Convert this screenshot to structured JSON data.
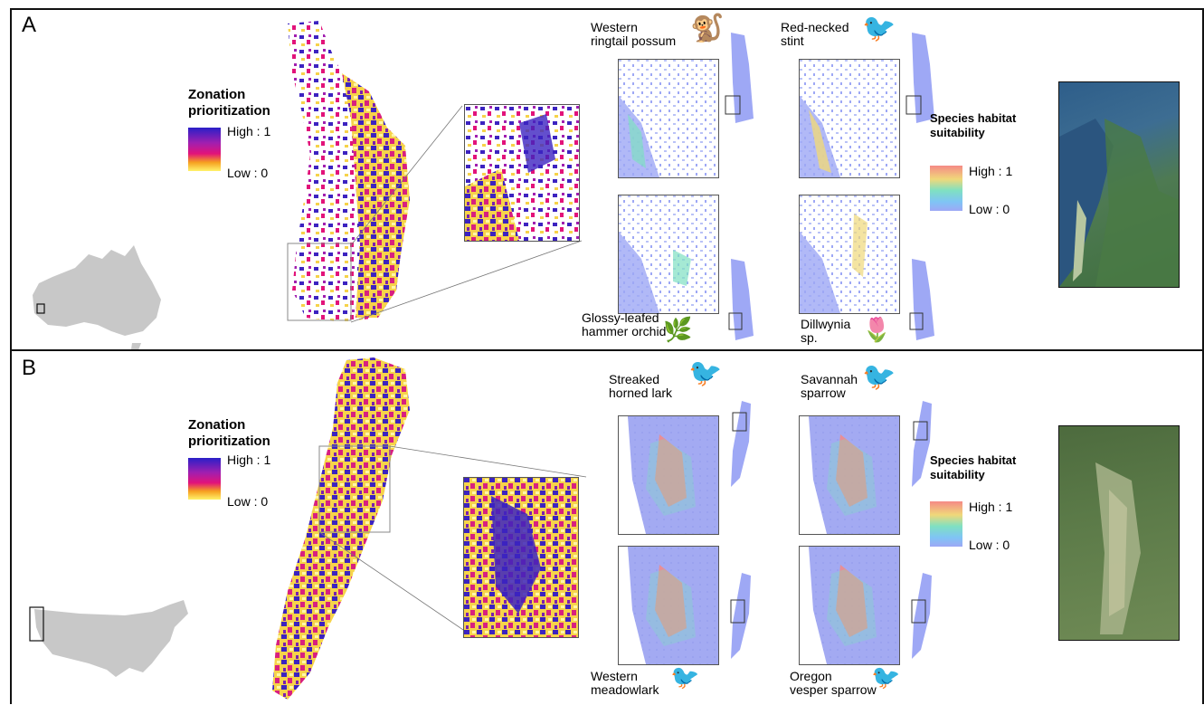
{
  "panelA": {
    "label": "A",
    "zonation": {
      "title_line1": "Zonation",
      "title_line2": "prioritization",
      "high": "High : 1",
      "low": "Low : 0"
    },
    "habitat": {
      "title_line1": "Species habitat",
      "title_line2": "suitability",
      "high": "High : 1",
      "low": "Low : 0"
    },
    "species": {
      "s1_line1": "Western",
      "s1_line2": "ringtail possum",
      "s2_line1": "Red-necked",
      "s2_line2": "stint",
      "s3_line1": "Glossy-leafed",
      "s3_line2": "hammer orchid",
      "s4_line1": "Dillwynia",
      "s4_line2": "sp."
    },
    "inset_region": "australia-map"
  },
  "panelB": {
    "label": "B",
    "zonation": {
      "title_line1": "Zonation",
      "title_line2": "prioritization",
      "high": "High : 1",
      "low": "Low : 0"
    },
    "habitat": {
      "title_line1": "Species habitat",
      "title_line2": "suitability",
      "high": "High : 1",
      "low": "Low : 0"
    },
    "species": {
      "s1_line1": "Streaked",
      "s1_line2": "horned lark",
      "s2_line1": "Savannah",
      "s2_line2": "sparrow",
      "s3_line1": "Western",
      "s3_line2": "meadowlark",
      "s4_line1": "Oregon",
      "s4_line2": "vesper sparrow"
    },
    "inset_region": "usa-map"
  },
  "colors": {
    "zonation_high": "#2a1fc8",
    "zonation_mid": "#e2137a",
    "zonation_low": "#fff26a",
    "habitat_high": "#f59a8a",
    "habitat_mid": "#7fe0c2",
    "habitat_low": "#9ea8f5",
    "land_grey": "#c8c8c8"
  }
}
